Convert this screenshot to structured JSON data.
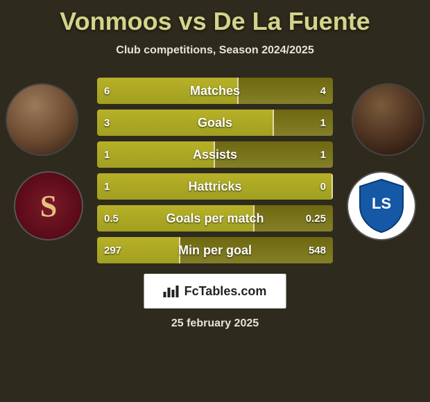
{
  "title": "Vonmoos vs De La Fuente",
  "subtitle": "Club competitions, Season 2024/2025",
  "footer_brand": "FcTables.com",
  "footer_date": "25 february 2025",
  "colors": {
    "bg": "#2e2a1d",
    "title": "#d4d48a",
    "bar_dark": "#848028",
    "bar_light": "#b8b028",
    "text": "#ffffff"
  },
  "bars": [
    {
      "label": "Matches",
      "left_text": "6",
      "right_text": "4",
      "left_pct": 60,
      "right_pct": 40
    },
    {
      "label": "Goals",
      "left_text": "3",
      "right_text": "1",
      "left_pct": 75,
      "right_pct": 25
    },
    {
      "label": "Assists",
      "left_text": "1",
      "right_text": "1",
      "left_pct": 50,
      "right_pct": 50
    },
    {
      "label": "Hattricks",
      "left_text": "1",
      "right_text": "0",
      "left_pct": 100,
      "right_pct": 0
    },
    {
      "label": "Goals per match",
      "left_text": "0.5",
      "right_text": "0.25",
      "left_pct": 66.7,
      "right_pct": 33.3
    },
    {
      "label": "Min per goal",
      "left_text": "297",
      "right_text": "548",
      "left_pct": 35.2,
      "right_pct": 64.8
    }
  ],
  "players": {
    "left_name": "Vonmoos",
    "right_name": "De La Fuente",
    "left_club": "Servette",
    "right_club": "Lausanne Sport"
  }
}
